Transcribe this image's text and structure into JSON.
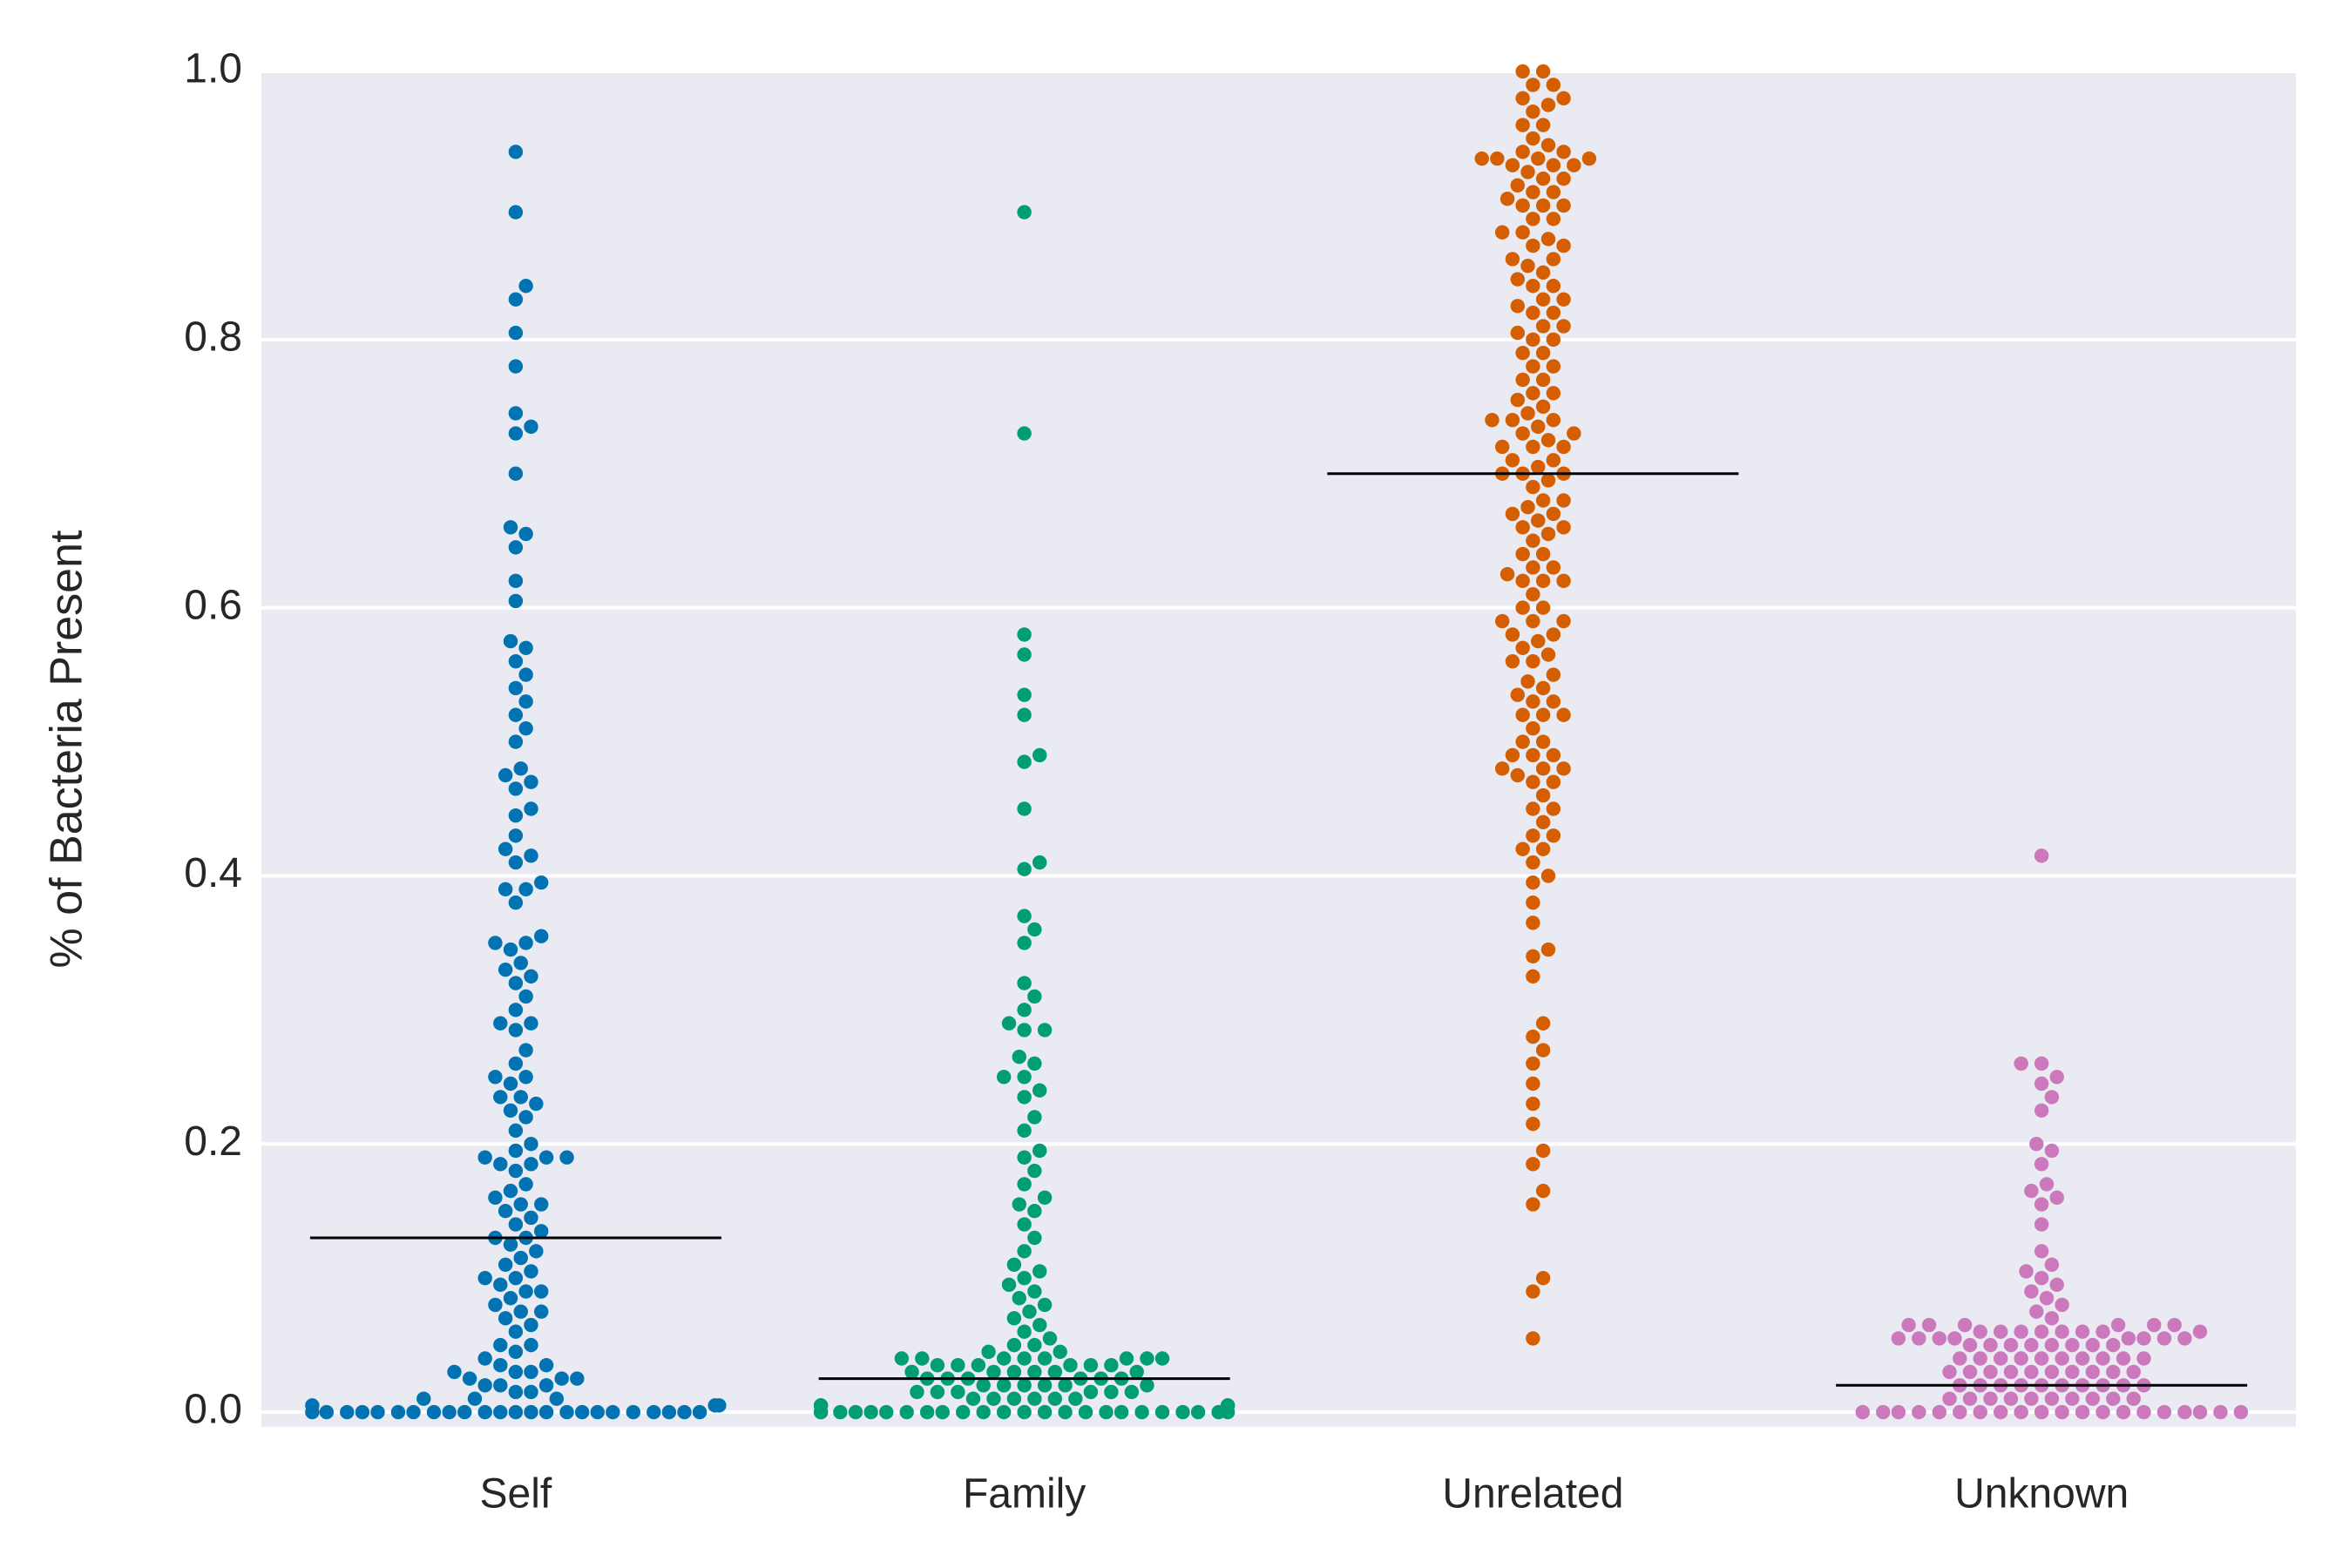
{
  "chart_data": {
    "type": "swarm",
    "ylabel": "% of Bacteria Present",
    "categories": [
      "Self",
      "Family",
      "Unrelated",
      "Unknown"
    ],
    "colors": [
      "#0173b2",
      "#029e73",
      "#d55e00",
      "#cc78bc"
    ],
    "medians": [
      0.13,
      0.025,
      0.7,
      0.02
    ],
    "ylim": [
      -0.011,
      1.0
    ],
    "yticks": [
      {
        "value": 0,
        "label": "0.0"
      },
      0.2,
      0.4,
      0.6,
      0.8,
      {
        "value": 1,
        "label": "1.0"
      }
    ],
    "grid": true,
    "values": [
      [
        0.94,
        0.895,
        0.84,
        0.83,
        0.805,
        0.78,
        0.745,
        0.735,
        0.73,
        0.7,
        0.66,
        0.655,
        0.645,
        0.62,
        0.605,
        0.575,
        0.57,
        0.56,
        0.55,
        0.54,
        0.53,
        0.52,
        0.51,
        0.5,
        0.48,
        0.475,
        0.47,
        0.465,
        0.45,
        0.445,
        0.43,
        0.42,
        0.415,
        0.41,
        0.395,
        0.39,
        0.39,
        0.38,
        0.355,
        0.35,
        0.35,
        0.345,
        0.335,
        0.33,
        0.325,
        0.32,
        0.31,
        0.3,
        0.29,
        0.29,
        0.285,
        0.27,
        0.26,
        0.25,
        0.25,
        0.245,
        0.235,
        0.235,
        0.23,
        0.225,
        0.22,
        0.21,
        0.2,
        0.195,
        0.19,
        0.19,
        0.19,
        0.185,
        0.185,
        0.18,
        0.17,
        0.165,
        0.16,
        0.155,
        0.155,
        0.15,
        0.145,
        0.14,
        0.135,
        0.13,
        0.13,
        0.125,
        0.12,
        0.115,
        0.11,
        0.105,
        0.1,
        0.1,
        0.095,
        0.09,
        0.09,
        0.085,
        0.08,
        0.075,
        0.075,
        0.07,
        0.065,
        0.06,
        0.05,
        0.05,
        0.045,
        0.04,
        0.035,
        0.035,
        0.03,
        0.03,
        0.03,
        0.025,
        0.025,
        0.025,
        0.02,
        0.02,
        0.02,
        0.015,
        0.015,
        0.01,
        0.01,
        0.01,
        0.005,
        0.005,
        0.005,
        0,
        0,
        0,
        0,
        0,
        0,
        0,
        0,
        0,
        0,
        0,
        0,
        0,
        0,
        0,
        0,
        0,
        0,
        0,
        0,
        0,
        0,
        0,
        0
      ],
      [
        0.895,
        0.73,
        0.58,
        0.565,
        0.535,
        0.52,
        0.49,
        0.485,
        0.45,
        0.41,
        0.405,
        0.37,
        0.36,
        0.35,
        0.32,
        0.31,
        0.3,
        0.29,
        0.285,
        0.285,
        0.265,
        0.26,
        0.25,
        0.25,
        0.24,
        0.235,
        0.22,
        0.21,
        0.195,
        0.19,
        0.18,
        0.17,
        0.16,
        0.155,
        0.15,
        0.14,
        0.13,
        0.12,
        0.11,
        0.105,
        0.1,
        0.095,
        0.09,
        0.085,
        0.08,
        0.075,
        0.07,
        0.065,
        0.06,
        0.055,
        0.05,
        0.05,
        0.045,
        0.045,
        0.04,
        0.04,
        0.04,
        0.04,
        0.04,
        0.04,
        0.04,
        0.04,
        0.035,
        0.035,
        0.035,
        0.035,
        0.035,
        0.035,
        0.03,
        0.03,
        0.03,
        0.03,
        0.03,
        0.03,
        0.025,
        0.025,
        0.025,
        0.025,
        0.025,
        0.025,
        0.02,
        0.02,
        0.02,
        0.02,
        0.02,
        0.02,
        0.015,
        0.015,
        0.015,
        0.015,
        0.015,
        0.015,
        0.01,
        0.01,
        0.01,
        0.01,
        0.01,
        0.01,
        0.005,
        0.005,
        0.005,
        0.005,
        0,
        0,
        0,
        0,
        0,
        0,
        0,
        0,
        0,
        0,
        0,
        0,
        0,
        0,
        0,
        0,
        0,
        0,
        0,
        0,
        0,
        0,
        0,
        0
      ],
      [
        0.055,
        0.09,
        0.1,
        0.155,
        0.165,
        0.185,
        0.195,
        0.215,
        0.23,
        0.245,
        0.26,
        0.27,
        0.28,
        0.29,
        0.325,
        0.34,
        0.345,
        0.365,
        0.38,
        0.395,
        0.4,
        0.41,
        0.42,
        0.42,
        0.43,
        0.44,
        0.45,
        0.46,
        0.47,
        0.475,
        0.48,
        0.49,
        0.49,
        0.5,
        0.51,
        0.52,
        0.53,
        0.535,
        0.545,
        0.55,
        0.56,
        0.565,
        0.575,
        0.58,
        0.59,
        0.59,
        0.6,
        0.61,
        0.62,
        0.625,
        0.63,
        0.64,
        0.65,
        0.655,
        0.665,
        0.67,
        0.675,
        0.68,
        0.69,
        0.695,
        0.7,
        0.705,
        0.71,
        0.72,
        0.725,
        0.73,
        0.735,
        0.74,
        0.745,
        0.75,
        0.755,
        0.76,
        0.77,
        0.78,
        0.79,
        0.8,
        0.805,
        0.81,
        0.82,
        0.825,
        0.83,
        0.84,
        0.845,
        0.855,
        0.86,
        0.87,
        0.875,
        0.88,
        0.89,
        0.9,
        0.905,
        0.91,
        0.915,
        0.92,
        0.925,
        0.93,
        0.935,
        0.935,
        0.94,
        0.945,
        0.96,
        0.97,
        0.975,
        0.98,
        0.99,
        1.0,
        0.43,
        0.45,
        0.47,
        0.48,
        0.49,
        0.5,
        0.52,
        0.53,
        0.54,
        0.56,
        0.57,
        0.59,
        0.6,
        0.62,
        0.63,
        0.64,
        0.66,
        0.67,
        0.68,
        0.7,
        0.71,
        0.72,
        0.73,
        0.74,
        0.76,
        0.77,
        0.79,
        0.8,
        0.81,
        0.82,
        0.84,
        0.85,
        0.87,
        0.88,
        0.89,
        0.9,
        0.91,
        0.92,
        0.93,
        0.935,
        0.94,
        0.95,
        0.96,
        0.98,
        1.0,
        0.48,
        0.52,
        0.58,
        0.62,
        0.66,
        0.7,
        0.72,
        0.74,
        0.78,
        0.83,
        0.86,
        0.9,
        0.93,
        0.935,
        0.99
      ],
      [
        0.415,
        0.26,
        0.26,
        0.25,
        0.245,
        0.235,
        0.225,
        0.2,
        0.195,
        0.185,
        0.17,
        0.165,
        0.16,
        0.155,
        0.14,
        0.12,
        0.11,
        0.105,
        0.1,
        0.095,
        0.09,
        0.085,
        0.08,
        0.075,
        0.07,
        0.065,
        0.065,
        0.065,
        0.065,
        0.065,
        0.065,
        0.06,
        0.06,
        0.06,
        0.06,
        0.06,
        0.06,
        0.06,
        0.06,
        0.055,
        0.055,
        0.055,
        0.055,
        0.055,
        0.055,
        0.055,
        0.055,
        0.05,
        0.05,
        0.05,
        0.05,
        0.05,
        0.05,
        0.05,
        0.05,
        0.04,
        0.04,
        0.04,
        0.04,
        0.04,
        0.04,
        0.04,
        0.04,
        0.04,
        0.04,
        0.03,
        0.03,
        0.03,
        0.03,
        0.03,
        0.03,
        0.03,
        0.03,
        0.03,
        0.03,
        0.02,
        0.02,
        0.02,
        0.02,
        0.02,
        0.02,
        0.02,
        0.02,
        0.02,
        0.02,
        0.01,
        0.01,
        0.01,
        0.01,
        0.01,
        0.01,
        0.01,
        0.01,
        0.01,
        0.01,
        0,
        0,
        0,
        0,
        0,
        0,
        0,
        0,
        0,
        0,
        0,
        0,
        0,
        0,
        0,
        0,
        0,
        0,
        0,
        0
      ]
    ]
  }
}
